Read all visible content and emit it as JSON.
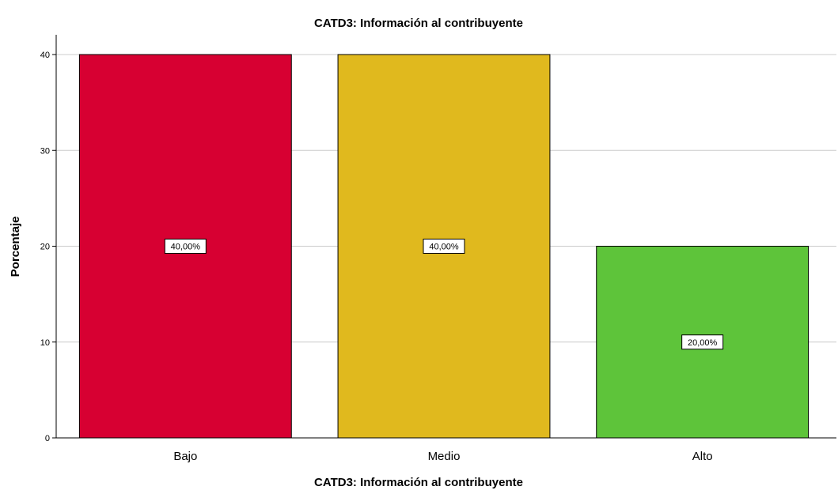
{
  "chart_data": {
    "type": "bar",
    "title": "CATD3: Información al contribuyente",
    "xlabel": "CATD3: Información al contribuyente",
    "ylabel": "Porcentaje",
    "categories": [
      "Bajo",
      "Medio",
      "Alto"
    ],
    "values": [
      40,
      40,
      20
    ],
    "data_labels": [
      "40,00%",
      "40,00%",
      "20,00%"
    ],
    "colors": [
      "#d70032",
      "#e0b91e",
      "#5ec43a"
    ],
    "ylim": [
      0,
      40
    ],
    "yticks": [
      0,
      10,
      20,
      30,
      40
    ],
    "ytick_labels": [
      "0",
      "10",
      "20",
      "30",
      "40"
    ],
    "grid": true,
    "grid_color": "#cccccc",
    "bar_edge_color": "#000000"
  }
}
